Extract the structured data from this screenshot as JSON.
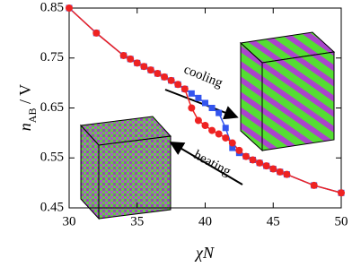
{
  "chart_data": {
    "type": "line",
    "xlabel": "χN",
    "ylabel": {
      "main": "n",
      "sub": "AB",
      "rest": " / V"
    },
    "annotations": [
      "cooling",
      "heating"
    ],
    "x": [
      30,
      32,
      34,
      34.5,
      35,
      35.5,
      36,
      36.5,
      37,
      37.5,
      38,
      38.5,
      39,
      39.5,
      40,
      40.5,
      41,
      41.5,
      42,
      42.5,
      43,
      43.5,
      44,
      44.5,
      45,
      45.5,
      46,
      48,
      50
    ],
    "series": [
      {
        "color": "#3355ee",
        "marker": "square",
        "values": [
          0.85,
          0.8,
          0.755,
          0.748,
          0.74,
          0.733,
          0.726,
          0.719,
          0.712,
          0.705,
          0.697,
          0.688,
          0.679,
          0.67,
          0.66,
          0.65,
          0.64,
          0.61,
          0.57,
          0.56,
          0.553,
          0.546,
          0.54,
          0.534,
          0.528,
          0.522,
          0.517,
          0.495,
          0.48
        ]
      },
      {
        "color": "#ee2222",
        "marker": "circle",
        "values": [
          0.85,
          0.8,
          0.755,
          0.748,
          0.74,
          0.733,
          0.726,
          0.719,
          0.712,
          0.705,
          0.697,
          0.688,
          0.65,
          0.625,
          0.615,
          0.605,
          0.598,
          0.59,
          0.58,
          0.565,
          0.553,
          0.546,
          0.54,
          0.534,
          0.528,
          0.522,
          0.517,
          0.495,
          0.48
        ]
      }
    ],
    "xlim": [
      30,
      50
    ],
    "xticks": [
      30,
      35,
      40,
      45,
      50
    ],
    "ylim": [
      0.45,
      0.85
    ],
    "yticks": [
      0.45,
      0.55,
      0.65,
      0.75,
      0.85
    ]
  }
}
